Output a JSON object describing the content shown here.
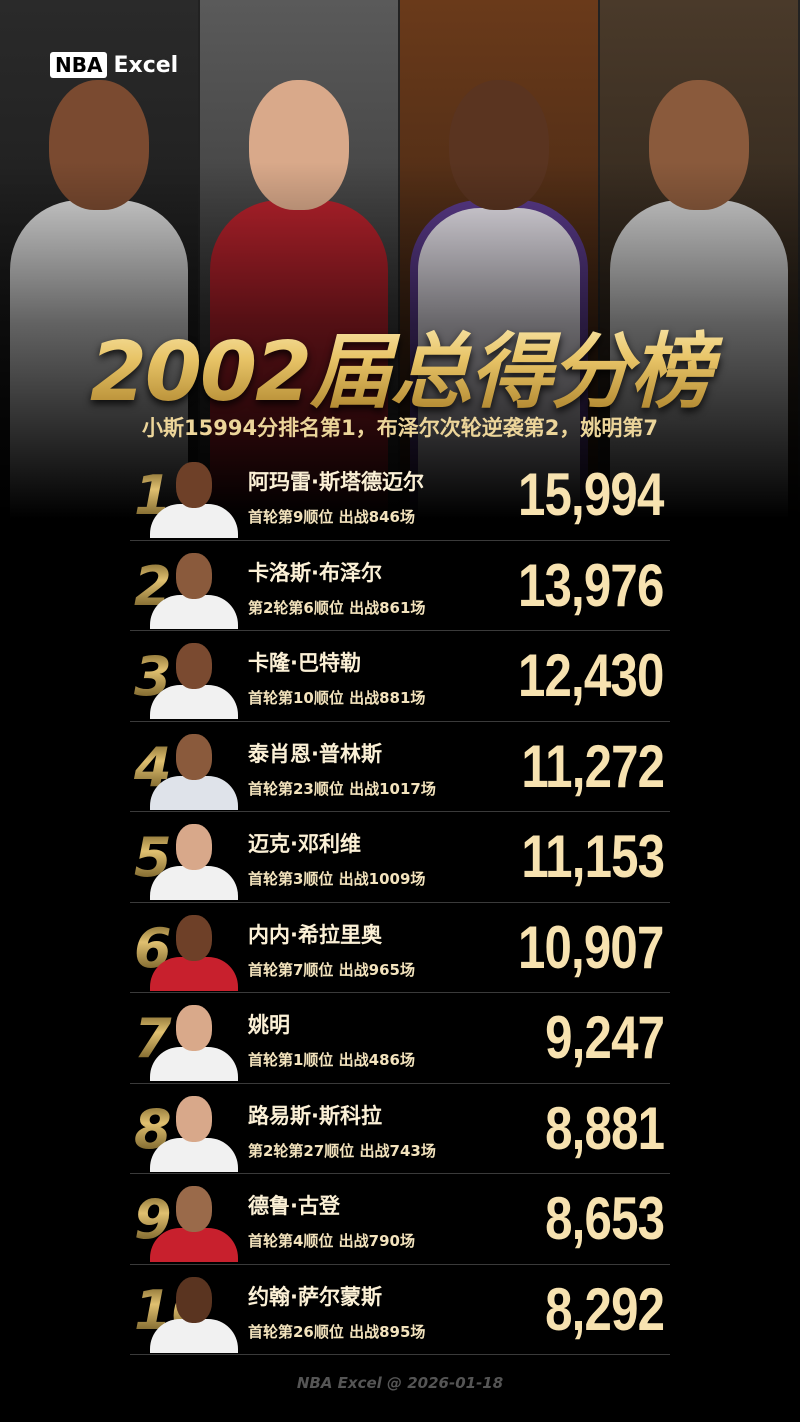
{
  "header": {
    "logo_box": "NBA",
    "logo_text": "Excel",
    "title": "2002届总得分榜",
    "subtitle": "小斯15994分排名第1，布泽尔次轮逆袭第2，姚明第7"
  },
  "colors": {
    "gold": "#e8c467",
    "points": "#f7e2b0",
    "background": "#000000"
  },
  "rankings": [
    {
      "rank": "1",
      "name": "阿玛雷·斯塔德迈尔",
      "meta": "首轮第9顺位 出战846场",
      "points": "15,994",
      "jersey": "#f1f1f1",
      "skin": "#6e4028"
    },
    {
      "rank": "2",
      "name": "卡洛斯·布泽尔",
      "meta": "第2轮第6顺位 出战861场",
      "points": "13,976",
      "jersey": "#f1f1f1",
      "skin": "#8a5a3c"
    },
    {
      "rank": "3",
      "name": "卡隆·巴特勒",
      "meta": "首轮第10顺位 出战881场",
      "points": "12,430",
      "jersey": "#f1f1f1",
      "skin": "#7a4a30"
    },
    {
      "rank": "4",
      "name": "泰肖恩·普林斯",
      "meta": "首轮第23顺位 出战1017场",
      "points": "11,272",
      "jersey": "#dfe3ea",
      "skin": "#8a5a3c"
    },
    {
      "rank": "5",
      "name": "迈克·邓利维",
      "meta": "首轮第3顺位 出战1009场",
      "points": "11,153",
      "jersey": "#f1f1f1",
      "skin": "#d8a88a"
    },
    {
      "rank": "6",
      "name": "内内·希拉里奥",
      "meta": "首轮第7顺位 出战965场",
      "points": "10,907",
      "jersey": "#c8202d",
      "skin": "#6e4028"
    },
    {
      "rank": "7",
      "name": "姚明",
      "meta": "首轮第1顺位 出战486场",
      "points": "9,247",
      "jersey": "#f1f1f1",
      "skin": "#d9a98a"
    },
    {
      "rank": "8",
      "name": "路易斯·斯科拉",
      "meta": "第2轮第27顺位 出战743场",
      "points": "8,881",
      "jersey": "#f1f1f1",
      "skin": "#d8a88a"
    },
    {
      "rank": "9",
      "name": "德鲁·古登",
      "meta": "首轮第4顺位 出战790场",
      "points": "8,653",
      "jersey": "#c8202d",
      "skin": "#9a6a4a"
    },
    {
      "rank": "10",
      "name": "约翰·萨尔蒙斯",
      "meta": "首轮第26顺位 出战895场",
      "points": "8,292",
      "jersey": "#f1f1f1",
      "skin": "#5a3420"
    }
  ],
  "footer": "NBA Excel @ 2026-01-18"
}
